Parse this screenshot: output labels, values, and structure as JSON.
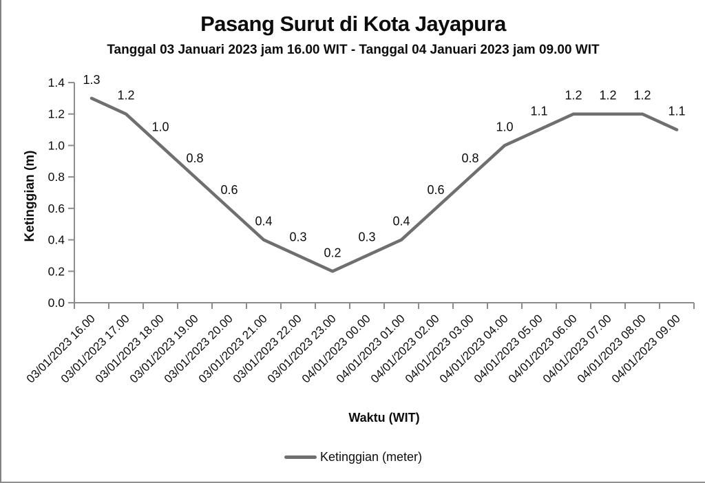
{
  "chart_data": {
    "type": "line",
    "title": "Pasang Surut di Kota Jayapura",
    "subtitle": "Tanggal 03 Januari 2023 jam 16.00 WIT - Tanggal 04 Januari 2023 jam 09.00 WIT",
    "xlabel": "Waktu (WIT)",
    "ylabel": "Ketinggian (m)",
    "categories": [
      "03/01/2023 16.00",
      "03/01/2023 17.00",
      "03/01/2023 18.00",
      "03/01/2023 19.00",
      "03/01/2023 20.00",
      "03/01/2023 21.00",
      "03/01/2023 22.00",
      "03/01/2023 23.00",
      "04/01/2023 00.00",
      "04/01/2023 01.00",
      "04/01/2023 02.00",
      "04/01/2023 03.00",
      "04/01/2023 04.00",
      "04/01/2023 05.00",
      "04/01/2023 06.00",
      "04/01/2023 07.00",
      "04/01/2023 08.00",
      "04/01/2023 09.00"
    ],
    "series": [
      {
        "name": "Ketinggian (meter)",
        "values": [
          1.3,
          1.2,
          1.0,
          0.8,
          0.6,
          0.4,
          0.3,
          0.2,
          0.3,
          0.4,
          0.6,
          0.8,
          1.0,
          1.1,
          1.2,
          1.2,
          1.2,
          1.1
        ]
      }
    ],
    "data_labels": true,
    "ylim": [
      0.0,
      1.4
    ],
    "ytick_step": 0.2,
    "ytick_labels": [
      "0.0",
      "0.2",
      "0.4",
      "0.6",
      "0.8",
      "1.0",
      "1.2",
      "1.4"
    ],
    "grid": false,
    "legend_position": "bottom",
    "legend_entries": [
      "Ketinggian (meter)"
    ],
    "colors": {
      "line": "#6f6f6f",
      "axis": "#8c8c8c",
      "text": "#0d0d0d"
    }
  }
}
